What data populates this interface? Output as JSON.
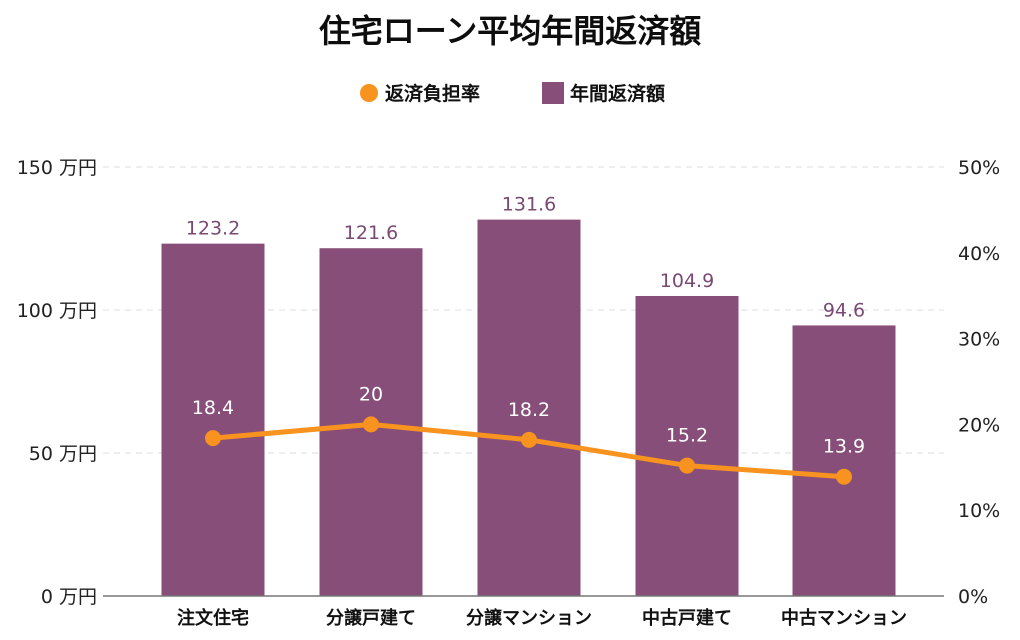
{
  "chart_data": {
    "type": "bar",
    "title": "住宅ローン平均年間返済額",
    "categories": [
      "注文住宅",
      "分譲戸建て",
      "分譲マンション",
      "中古戸建て",
      "中古マンション"
    ],
    "series": [
      {
        "name": "年間返済額",
        "type": "bar",
        "axis": "left",
        "values": [
          123.2,
          121.6,
          131.6,
          104.9,
          94.6
        ],
        "color": "#864e79"
      },
      {
        "name": "返済負担率",
        "type": "line",
        "axis": "right",
        "values": [
          18.4,
          20,
          18.2,
          15.2,
          13.9
        ],
        "color": "#f7931e"
      }
    ],
    "left_axis": {
      "ylim": [
        0,
        150
      ],
      "ticks": [
        0,
        50,
        100,
        150
      ],
      "tick_labels": [
        "0 万円",
        "50 万円",
        "100 万円",
        "150 万円"
      ]
    },
    "right_axis": {
      "ylim": [
        0,
        50
      ],
      "ticks": [
        0,
        10,
        20,
        30,
        40,
        50
      ],
      "tick_labels": [
        "0%",
        "10%",
        "20%",
        "30%",
        "40%",
        "50%"
      ]
    },
    "legend": {
      "position": "top-center",
      "items": [
        {
          "label": "返済負担率",
          "marker": "circle",
          "color": "#f7931e"
        },
        {
          "label": "年間返済額",
          "marker": "square",
          "color": "#864e79"
        }
      ]
    },
    "grid": true,
    "grid_style": "dashed",
    "xlabel": "",
    "ylabel": ""
  }
}
